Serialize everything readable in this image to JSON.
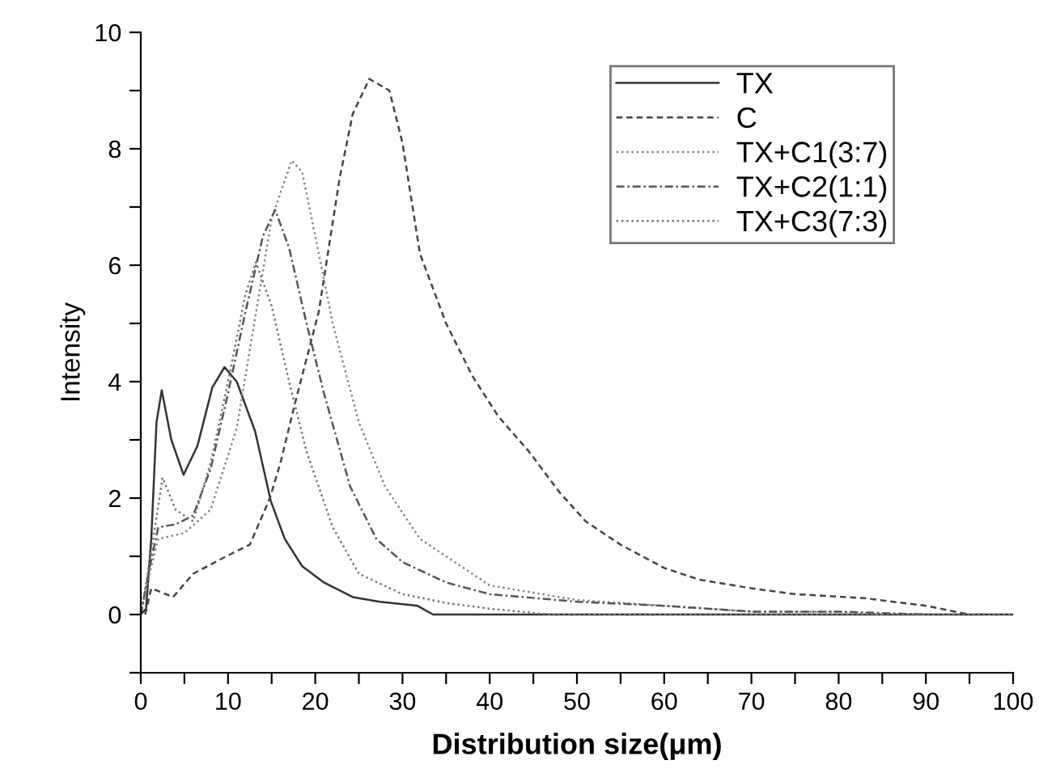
{
  "chart_data": {
    "type": "line",
    "xlabel": "Distribution size(μm)",
    "ylabel": "Intensity",
    "xlim": [
      0,
      100
    ],
    "ylim": [
      -1,
      10
    ],
    "xticks": [
      0,
      {
        "value": 5,
        "label": null
      },
      10,
      {
        "value": 15,
        "label": null
      },
      20,
      {
        "value": 25,
        "label": null
      },
      30,
      {
        "value": 35,
        "label": null
      },
      40,
      {
        "value": 45,
        "label": null
      },
      50,
      {
        "value": 55,
        "label": null
      },
      60,
      {
        "value": 65,
        "label": null
      },
      70,
      {
        "value": 75,
        "label": null
      },
      80,
      {
        "value": 85,
        "label": null
      },
      90,
      {
        "value": 95,
        "label": null
      },
      100
    ],
    "yticks": [
      {
        "value": -1,
        "label": null
      },
      0,
      {
        "value": 1,
        "label": null
      },
      2,
      {
        "value": 3,
        "label": null
      },
      4,
      {
        "value": 5,
        "label": null
      },
      6,
      {
        "value": 7,
        "label": null
      },
      8,
      {
        "value": 9,
        "label": null
      },
      10
    ],
    "grid": false,
    "legend": "top right",
    "marker": "none",
    "series": [
      {
        "name": "TX",
        "color": "#333333",
        "line_style": "solid",
        "x": [
          0,
          0.6,
          1.2,
          1.8,
          2.4,
          3.5,
          4.9,
          6.5,
          8.2,
          9.6,
          11,
          13.1,
          14.9,
          16.5,
          18.5,
          21,
          24.3,
          27.4,
          31.7,
          33.5,
          100
        ],
        "values": [
          0,
          0.1,
          1.3,
          3.3,
          3.85,
          3.0,
          2.4,
          2.9,
          3.9,
          4.25,
          4.0,
          3.15,
          1.95,
          1.3,
          0.83,
          0.55,
          0.3,
          0.22,
          0.15,
          0,
          0
        ]
      },
      {
        "name": "C",
        "color": "#444444",
        "line_style": "dashed",
        "x": [
          0.5,
          1.2,
          3.7,
          6,
          9.8,
          12.5,
          14.8,
          16,
          17.8,
          20.4,
          22.8,
          24.3,
          26.2,
          28.5,
          30,
          32,
          35,
          38,
          41,
          44.5,
          48,
          51,
          55,
          60,
          64,
          70,
          75,
          83,
          90,
          95
        ],
        "values": [
          0,
          0.45,
          0.3,
          0.7,
          1.0,
          1.2,
          2.0,
          2.6,
          3.7,
          5.2,
          7.5,
          8.6,
          9.2,
          9.0,
          8.1,
          6.2,
          5.0,
          4.1,
          3.4,
          2.8,
          2.1,
          1.6,
          1.2,
          0.8,
          0.6,
          0.45,
          0.35,
          0.28,
          0.15,
          0
        ]
      },
      {
        "name": "TX+C1(3:7)",
        "color": "#888888",
        "line_style": "dotted",
        "x": [
          0,
          1,
          2,
          5,
          8,
          11,
          13,
          15,
          17.3,
          18.5,
          20,
          22,
          25,
          28,
          32,
          36,
          40,
          50,
          60,
          70,
          80,
          85
        ],
        "values": [
          0,
          0.7,
          1.3,
          1.4,
          1.8,
          3.2,
          5.0,
          6.8,
          7.8,
          7.6,
          6.5,
          5.0,
          3.3,
          2.2,
          1.3,
          0.9,
          0.5,
          0.25,
          0.15,
          0.05,
          0.05,
          0
        ]
      },
      {
        "name": "TX+C2(1:1)",
        "color": "#555555",
        "line_style": "dashdot",
        "x": [
          0,
          1,
          2,
          4,
          6,
          8,
          10,
          12,
          14,
          15.4,
          17,
          19,
          21,
          24,
          27,
          30,
          35,
          40,
          50,
          60,
          70,
          80,
          90
        ],
        "values": [
          0,
          0.8,
          1.5,
          1.55,
          1.7,
          2.5,
          3.8,
          5.2,
          6.5,
          6.95,
          6.3,
          5.0,
          3.8,
          2.2,
          1.3,
          0.9,
          0.55,
          0.35,
          0.22,
          0.15,
          0.05,
          0.05,
          0
        ]
      },
      {
        "name": "TX+C3(7:3)",
        "color": "#777777",
        "line_style": "dotted",
        "x": [
          0,
          1,
          2.5,
          4,
          6,
          8,
          10,
          12,
          13.2,
          15,
          17,
          19,
          22,
          25,
          30,
          35,
          40,
          47,
          100
        ],
        "values": [
          0,
          0.9,
          2.35,
          1.8,
          1.6,
          2.6,
          4.0,
          5.5,
          6.05,
          5.3,
          4.0,
          2.8,
          1.5,
          0.7,
          0.35,
          0.2,
          0.1,
          0,
          0
        ]
      }
    ]
  }
}
